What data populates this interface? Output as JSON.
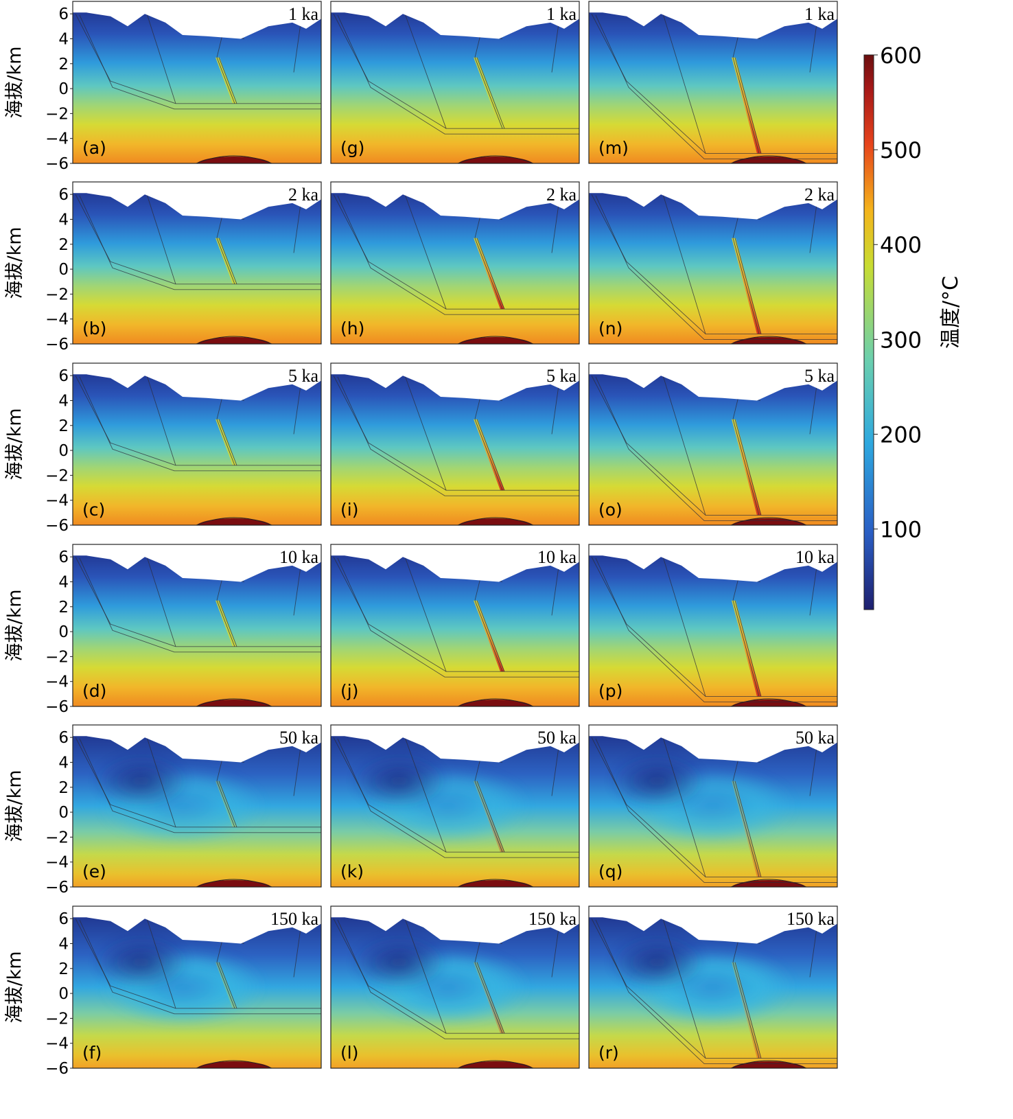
{
  "figure": {
    "ylabel": "海拔/km",
    "yticks": [
      6,
      4,
      2,
      0,
      -2,
      -4,
      -6
    ],
    "ylim": [
      -6,
      7
    ]
  },
  "colorbar": {
    "label": "温度/°C",
    "ticks": [
      100,
      200,
      300,
      400,
      500,
      600
    ],
    "min": 15,
    "max": 600,
    "stops": [
      "#1e1f6e",
      "#2a5fc4",
      "#2ea8df",
      "#6bcfae",
      "#c8dc32",
      "#f4b41c",
      "#e6431c",
      "#a51818",
      "#6a0f0f"
    ]
  },
  "chart_data": {
    "type": "heatmap",
    "panels": [
      {
        "id": "a",
        "label": "(a)",
        "time": "1 ka",
        "column": 1,
        "row": 1
      },
      {
        "id": "b",
        "label": "(b)",
        "time": "2 ka",
        "column": 1,
        "row": 2
      },
      {
        "id": "c",
        "label": "(c)",
        "time": "5 ka",
        "column": 1,
        "row": 3
      },
      {
        "id": "d",
        "label": "(d)",
        "time": "10 ka",
        "column": 1,
        "row": 4
      },
      {
        "id": "e",
        "label": "(e)",
        "time": "50 ka",
        "column": 1,
        "row": 5
      },
      {
        "id": "f",
        "label": "(f)",
        "time": "150 ka",
        "column": 1,
        "row": 6
      },
      {
        "id": "g",
        "label": "(g)",
        "time": "1 ka",
        "column": 2,
        "row": 1
      },
      {
        "id": "h",
        "label": "(h)",
        "time": "2 ka",
        "column": 2,
        "row": 2
      },
      {
        "id": "i",
        "label": "(i)",
        "time": "5 ka",
        "column": 2,
        "row": 3
      },
      {
        "id": "j",
        "label": "(j)",
        "time": "10 ka",
        "column": 2,
        "row": 4
      },
      {
        "id": "k",
        "label": "(k)",
        "time": "50 ka",
        "column": 2,
        "row": 5
      },
      {
        "id": "l",
        "label": "(l)",
        "time": "150 ka",
        "column": 2,
        "row": 6
      },
      {
        "id": "m",
        "label": "(m)",
        "time": "1 ka",
        "column": 3,
        "row": 1
      },
      {
        "id": "n",
        "label": "(n)",
        "time": "2 ka",
        "column": 3,
        "row": 2
      },
      {
        "id": "o",
        "label": "(o)",
        "time": "5 ka",
        "column": 3,
        "row": 3
      },
      {
        "id": "p",
        "label": "(p)",
        "time": "10 ka",
        "column": 3,
        "row": 4
      },
      {
        "id": "q",
        "label": "(q)",
        "time": "50 ka",
        "column": 3,
        "row": 5
      },
      {
        "id": "r",
        "label": "(r)",
        "time": "150 ka",
        "column": 3,
        "row": 6
      }
    ],
    "detachment_depth_km": [
      -1.2,
      -3.2,
      -5.2
    ],
    "topography_km": [
      6.1,
      6.1,
      5.8,
      5.0,
      6.0,
      5.3,
      4.3,
      4.2,
      4.0,
      5.0,
      5.3,
      4.8,
      5.6
    ],
    "magma_chamber_peak_C": 600,
    "grid": false,
    "legend": "colorbar-right"
  }
}
